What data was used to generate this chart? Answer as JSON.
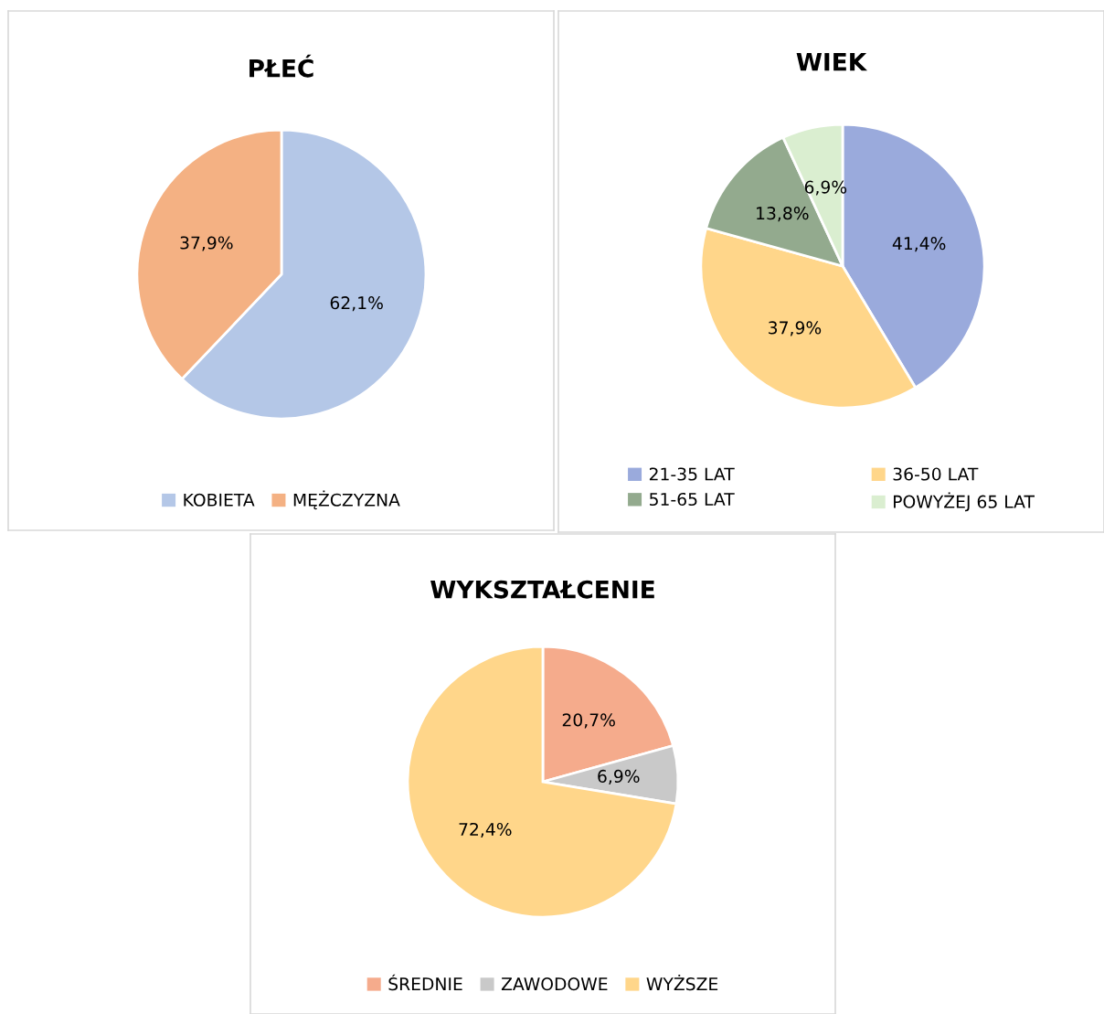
{
  "chart_data": [
    {
      "type": "pie",
      "title": "PŁEĆ",
      "categories": [
        "KOBIETA",
        "MĘŻCZYZNA"
      ],
      "values": [
        62.1,
        37.9
      ],
      "colors": [
        "#b4c7e7",
        "#f4b183"
      ],
      "value_labels": [
        "62,1%",
        "37,9%"
      ],
      "legend": "bottom"
    },
    {
      "type": "pie",
      "title": "WIEK",
      "categories": [
        "21-35 LAT",
        "36-50 LAT",
        "51-65 LAT",
        "POWYŻEJ 65 LAT"
      ],
      "values": [
        41.4,
        37.9,
        13.8,
        6.9
      ],
      "colors": [
        "#9aaadc",
        "#ffd68a",
        "#93aa8e",
        "#daeed0"
      ],
      "value_labels": [
        "41,4%",
        "37,9%",
        "13,8%",
        "6,9%"
      ],
      "legend": "bottom"
    },
    {
      "type": "pie",
      "title": "WYKSZTAŁCENIE",
      "categories": [
        "ŚREDNIE",
        "ZAWODOWE",
        "WYŻSZE"
      ],
      "values": [
        20.7,
        6.9,
        72.4
      ],
      "colors": [
        "#f5ab8c",
        "#c9c9c9",
        "#ffd68a"
      ],
      "value_labels": [
        "20,7%",
        "6,9%",
        "72,4%"
      ],
      "legend": "bottom"
    }
  ]
}
